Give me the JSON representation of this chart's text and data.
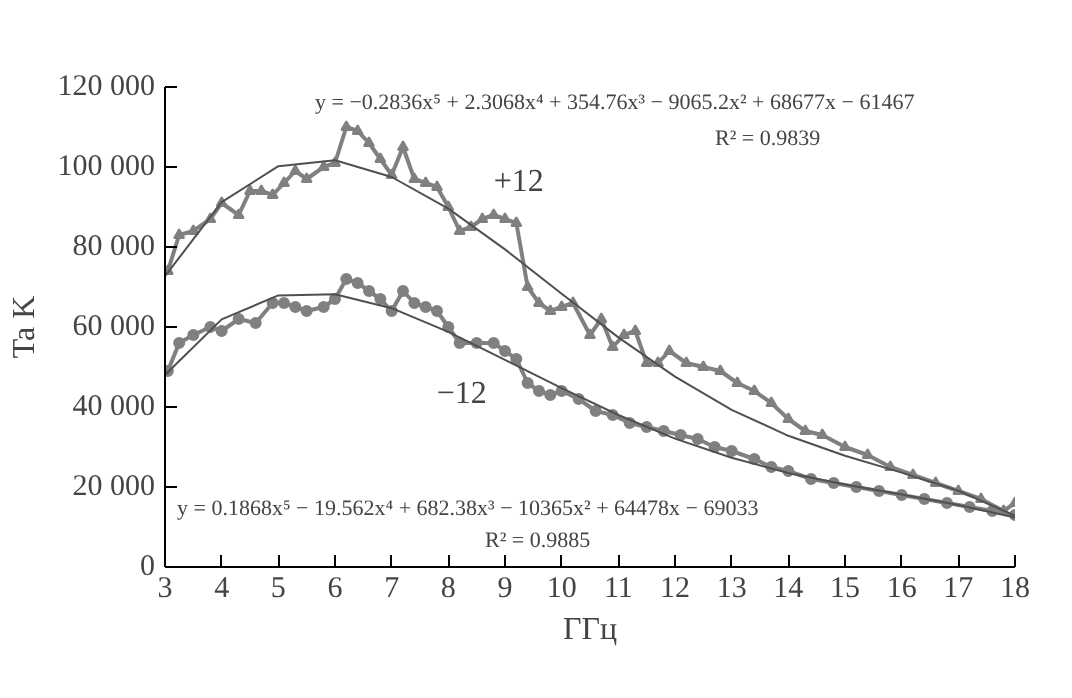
{
  "chart_data": {
    "type": "line",
    "xlabel": "ГГц",
    "ylabel": "Ta K",
    "xlim": [
      3,
      18
    ],
    "ylim": [
      0,
      120000
    ],
    "xticks": [
      3,
      4,
      5,
      6,
      7,
      8,
      9,
      10,
      11,
      12,
      13,
      14,
      15,
      16,
      17,
      18
    ],
    "yticks": [
      {
        "value": 0,
        "label": "0"
      },
      {
        "value": 20000,
        "label": "20 000"
      },
      {
        "value": 40000,
        "label": "40 000"
      },
      {
        "value": 60000,
        "label": "60 000"
      },
      {
        "value": 80000,
        "label": "80 000"
      },
      {
        "value": 100000,
        "label": "100 000"
      },
      {
        "value": 120000,
        "label": "120 000"
      }
    ],
    "grid": false,
    "line_style": "solid",
    "series": [
      {
        "name": "+12",
        "color": "#808080",
        "marker": "triangle",
        "x": [
          3.05,
          3.25,
          3.5,
          3.8,
          4.0,
          4.3,
          4.5,
          4.7,
          4.9,
          5.1,
          5.3,
          5.5,
          5.8,
          6.0,
          6.2,
          6.4,
          6.6,
          6.8,
          7.0,
          7.2,
          7.4,
          7.6,
          7.8,
          8.0,
          8.2,
          8.4,
          8.6,
          8.8,
          9.0,
          9.2,
          9.4,
          9.6,
          9.8,
          10.0,
          10.2,
          10.5,
          10.7,
          10.9,
          11.1,
          11.3,
          11.5,
          11.7,
          11.9,
          12.2,
          12.5,
          12.8,
          13.1,
          13.4,
          13.7,
          14.0,
          14.3,
          14.6,
          15.0,
          15.4,
          15.8,
          16.2,
          16.6,
          17.0,
          17.4,
          17.8,
          18.0
        ],
        "values": [
          74000,
          83000,
          84000,
          87000,
          91000,
          88000,
          94000,
          94000,
          93000,
          96000,
          99000,
          97000,
          100000,
          101000,
          110000,
          109000,
          106000,
          102000,
          98000,
          105000,
          97000,
          96000,
          95000,
          90000,
          84000,
          85000,
          87000,
          88000,
          87000,
          86000,
          70000,
          66000,
          64000,
          65000,
          66000,
          58000,
          62000,
          55000,
          58000,
          59000,
          51000,
          51000,
          54000,
          51000,
          50000,
          49000,
          46000,
          44000,
          41000,
          37000,
          34000,
          33000,
          30000,
          28000,
          25000,
          23000,
          21000,
          19000,
          17000,
          14000,
          16000
        ]
      },
      {
        "name": "−12",
        "color": "#808080",
        "marker": "circle",
        "x": [
          3.05,
          3.25,
          3.5,
          3.8,
          4.0,
          4.3,
          4.6,
          4.9,
          5.1,
          5.3,
          5.5,
          5.8,
          6.0,
          6.2,
          6.4,
          6.6,
          6.8,
          7.0,
          7.2,
          7.4,
          7.6,
          7.8,
          8.0,
          8.2,
          8.5,
          8.8,
          9.0,
          9.2,
          9.4,
          9.6,
          9.8,
          10.0,
          10.3,
          10.6,
          10.9,
          11.2,
          11.5,
          11.8,
          12.1,
          12.4,
          12.7,
          13.0,
          13.4,
          13.7,
          14.0,
          14.4,
          14.8,
          15.2,
          15.6,
          16.0,
          16.4,
          16.8,
          17.2,
          17.6,
          18.0
        ],
        "values": [
          49000,
          56000,
          58000,
          60000,
          59000,
          62000,
          61000,
          66000,
          66000,
          65000,
          64000,
          65000,
          67000,
          72000,
          71000,
          69000,
          67000,
          64000,
          69000,
          66000,
          65000,
          64000,
          60000,
          56000,
          56000,
          56000,
          54000,
          52000,
          46000,
          44000,
          43000,
          44000,
          42000,
          39000,
          38000,
          36000,
          35000,
          34000,
          33000,
          32000,
          30000,
          29000,
          27000,
          25000,
          24000,
          22000,
          21000,
          20000,
          19000,
          18000,
          17000,
          16000,
          15000,
          14000,
          13000
        ]
      },
      {
        "color": "#505050",
        "marker": "none",
        "x": [
          3,
          4,
          5,
          6,
          7,
          8,
          9,
          10,
          11,
          12,
          13,
          14,
          15,
          16,
          17,
          18
        ],
        "values": [
          72700,
          91200,
          100200,
          101700,
          97500,
          89600,
          79400,
          68300,
          57400,
          47600,
          39300,
          32800,
          27800,
          23600,
          19100,
          12800
        ]
      },
      {
        "color": "#505050",
        "marker": "none",
        "x": [
          3,
          4,
          5,
          6,
          7,
          8,
          9,
          10,
          11,
          12,
          13,
          14,
          15,
          16,
          17,
          18
        ],
        "values": [
          48000,
          61900,
          67900,
          68200,
          64700,
          58800,
          51800,
          44700,
          38000,
          32100,
          27300,
          23500,
          20600,
          18100,
          15500,
          12400
        ]
      }
    ],
    "annotations": [
      "y = −0.2836x⁵ + 2.3068x⁴ + 354.76x³ − 9065.2x² + 68677x − 61467",
      "R² = 0.9839",
      "y = 0.1868x⁵ − 19.562x⁴ + 682.38x³ − 10365x² + 64478x − 69033",
      "R² = 0.9885"
    ]
  }
}
